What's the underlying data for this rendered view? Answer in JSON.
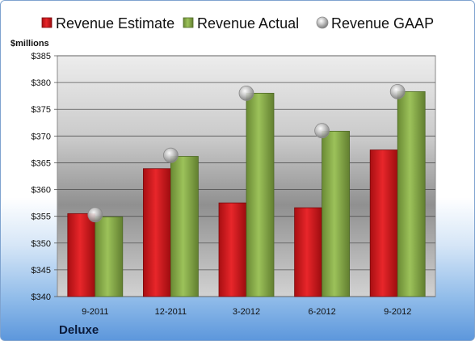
{
  "chart_data": {
    "type": "bar",
    "title": "",
    "company": "Deluxe",
    "unit_label": "$millions",
    "categories": [
      "9-2011",
      "12-2011",
      "3-2012",
      "6-2012",
      "9-2012"
    ],
    "series": [
      {
        "name": "Revenue Estimate",
        "type": "bar",
        "color": "#d7191c",
        "values": [
          355.5,
          363.9,
          357.5,
          356.6,
          367.4
        ]
      },
      {
        "name": "Revenue Actual",
        "type": "bar",
        "color": "#8db04c",
        "values": [
          354.9,
          366.2,
          378.0,
          370.9,
          378.3
        ]
      },
      {
        "name": "Revenue GAAP",
        "type": "scatter",
        "color": "#b8b8b8",
        "values": [
          355.3,
          366.4,
          378.0,
          371.0,
          378.3
        ]
      }
    ],
    "ylim": [
      340,
      385
    ],
    "yticks": [
      340,
      345,
      350,
      355,
      360,
      365,
      370,
      375,
      380,
      385
    ],
    "ytick_labels": [
      "$340",
      "$345",
      "$350",
      "$355",
      "$360",
      "$365",
      "$370",
      "$375",
      "$380",
      "$385"
    ],
    "grid": true,
    "legend": "top"
  }
}
